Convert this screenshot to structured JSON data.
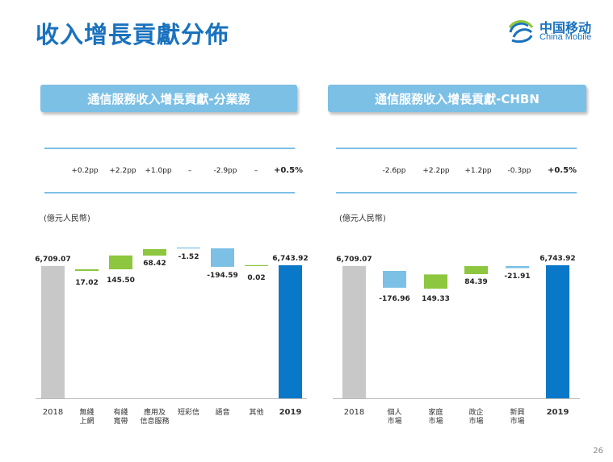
{
  "page": {
    "title": "收入增長貢獻分佈",
    "page_number": "26",
    "logo": {
      "cn": "中国移动",
      "en": "China Mobile"
    },
    "colors": {
      "brand_blue": "#1a72be",
      "header_blue": "#7cc0e6",
      "bar_gray": "#c8c8c8",
      "bar_green": "#8dc63f",
      "bar_lightblue": "#7cc0e6",
      "bar_total": "#0a78c8"
    }
  },
  "left": {
    "header": "通信服務收入增長貢獻-分業務",
    "unit_label": "(億元人民幣)",
    "contributions": [
      "+0.2pp",
      "+2.2pp",
      "+1.0pp",
      "–",
      "-2.9pp",
      "–",
      "+0.5%"
    ]
  },
  "right": {
    "header": "通信服務收入增長貢獻-CHBN",
    "unit_label": "(億元人民幣)",
    "contributions": [
      "-2.6pp",
      "+2.2pp",
      "+1.2pp",
      "-0.3pp",
      "+0.5%"
    ]
  },
  "chart_data": [
    {
      "type": "bar",
      "title": "通信服務收入增長貢獻-分業務",
      "categories": [
        "2018",
        "無綫\n上網",
        "有綫\n寬帶",
        "應用及\n信息服務",
        "短彩信",
        "語音",
        "其他",
        "2019"
      ],
      "labels": [
        "6,709.07",
        "17.02",
        "145.50",
        "68.42",
        "-1.52",
        "-194.59",
        "0.02",
        "6,743.92"
      ],
      "values": [
        6709.07,
        17.02,
        145.5,
        68.42,
        -1.52,
        -194.59,
        0.02,
        6743.92
      ],
      "kinds": [
        "total",
        "delta",
        "delta",
        "delta",
        "delta",
        "delta",
        "delta",
        "total"
      ]
    },
    {
      "type": "bar",
      "title": "通信服務收入增長貢獻-CHBN",
      "categories": [
        "2018",
        "個人\n市場",
        "家庭\n市場",
        "政企\n市場",
        "新興\n市場",
        "2019"
      ],
      "labels": [
        "6,709.07",
        "-176.96",
        "149.33",
        "84.39",
        "-21.91",
        "6,743.92"
      ],
      "values": [
        6709.07,
        -176.96,
        149.33,
        84.39,
        -21.91,
        6743.92
      ],
      "kinds": [
        "total",
        "delta",
        "delta",
        "delta",
        "delta",
        "total"
      ]
    }
  ]
}
